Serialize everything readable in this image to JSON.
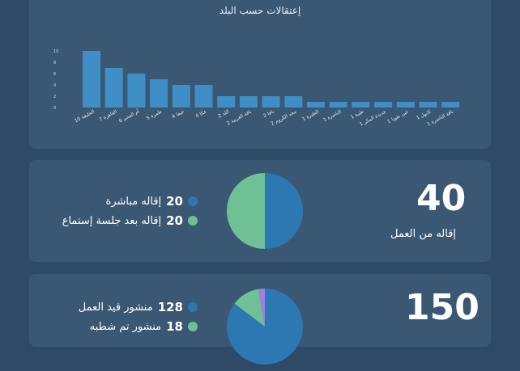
{
  "chart_data": {
    "type": "bar",
    "title": "إعتقالات حسب البلد",
    "categories": [
      "الخليفة",
      "القاهرة",
      "أم الفحم",
      "طمرة",
      "حيفا",
      "عكا",
      "اللد",
      "باقة الغربية",
      "يافا",
      "مجد الكروم",
      "الطيرة",
      "الناصرة",
      "طيبة",
      "جديدة المكر",
      "عين نقوبا",
      "كابول",
      "باقة الناصرة"
    ],
    "values": [
      10,
      7,
      6,
      5,
      4,
      4,
      2,
      2,
      2,
      2,
      1,
      1,
      1,
      1,
      1,
      1,
      1
    ],
    "y_ticks": [
      "10",
      "8",
      "6",
      "4",
      "2",
      "0"
    ],
    "ylim": [
      0,
      10
    ],
    "color": "#3f8ec6"
  },
  "dismissals": {
    "total": "40",
    "caption": "إقاله من العمل",
    "legend": [
      {
        "count": "20",
        "label": "إقاله مباشرة",
        "color": "#2d78b2"
      },
      {
        "count": "20",
        "label": "إقاله بعد جلسة إستماع",
        "color": "#70c095"
      }
    ],
    "pie": [
      20,
      20
    ]
  },
  "posts": {
    "total": "150",
    "legend": [
      {
        "count": "128",
        "label": "منشور قيد العمل",
        "color": "#2d78b2"
      },
      {
        "count": "18",
        "label": "منشور تم شطبه",
        "color": "#70c095"
      }
    ],
    "pie": [
      128,
      18,
      4
    ],
    "pie_colors": [
      "#2d78b2",
      "#70c095",
      "#a07ee6"
    ]
  }
}
